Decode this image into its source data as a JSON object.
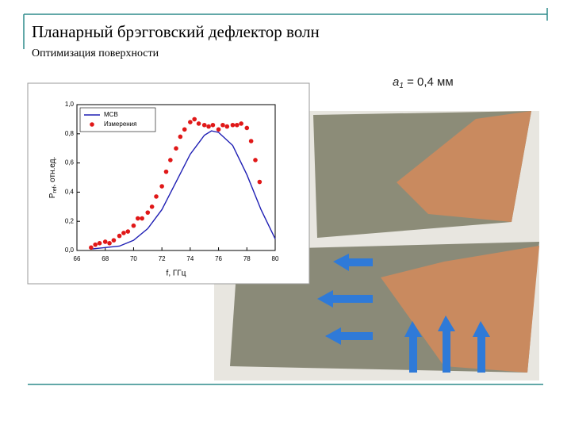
{
  "slide": {
    "title": "Планарный брэгговский дефлектор волн",
    "subtitle": "Оптимизация поверхности",
    "photo_label": [
      "a",
      "1",
      " = 0,4 мм"
    ]
  },
  "chart_data": {
    "type": "line",
    "xlabel": "f, ГГц",
    "ylabel": [
      "P",
      "ref",
      ", отн.ед."
    ],
    "xlim": [
      66,
      80
    ],
    "xticks": [
      66,
      68,
      70,
      72,
      74,
      76,
      78,
      80
    ],
    "ylim": [
      0,
      1
    ],
    "yticks": [
      {
        "value": 0,
        "label": "0,0"
      },
      {
        "value": 0.2,
        "label": "0,2"
      },
      {
        "value": 0.4,
        "label": "0,4"
      },
      {
        "value": 0.6,
        "label": "0,6"
      },
      {
        "value": 0.8,
        "label": "0,8"
      },
      {
        "value": 1,
        "label": "1,0"
      }
    ],
    "legend": "upper left",
    "series": [
      {
        "name": "МСВ",
        "color": "#1f1fb4",
        "mode": "line",
        "x": [
          67,
          68,
          69,
          70,
          71,
          72,
          73,
          74,
          75,
          75.5,
          76,
          77,
          78,
          79,
          80
        ],
        "values": [
          0.01,
          0.02,
          0.03,
          0.07,
          0.15,
          0.28,
          0.47,
          0.66,
          0.79,
          0.82,
          0.81,
          0.72,
          0.52,
          0.28,
          0.08
        ]
      },
      {
        "name": "Измерения",
        "color": "#e01818",
        "mode": "markers",
        "x": [
          67,
          67.3,
          67.6,
          68,
          68.3,
          68.6,
          69,
          69.3,
          69.6,
          70,
          70.3,
          70.6,
          71,
          71.3,
          71.6,
          72,
          72.3,
          72.6,
          73,
          73.3,
          73.6,
          74,
          74.3,
          74.6,
          75,
          75.3,
          75.6,
          76,
          76.3,
          76.6,
          77,
          77.3,
          77.6,
          78,
          78.3,
          78.6,
          78.9
        ],
        "values": [
          0.02,
          0.04,
          0.05,
          0.06,
          0.05,
          0.07,
          0.1,
          0.12,
          0.13,
          0.17,
          0.22,
          0.22,
          0.26,
          0.3,
          0.37,
          0.44,
          0.54,
          0.62,
          0.7,
          0.78,
          0.83,
          0.88,
          0.9,
          0.87,
          0.86,
          0.85,
          0.86,
          0.83,
          0.86,
          0.85,
          0.86,
          0.86,
          0.87,
          0.84,
          0.75,
          0.62,
          0.47
        ]
      }
    ]
  }
}
